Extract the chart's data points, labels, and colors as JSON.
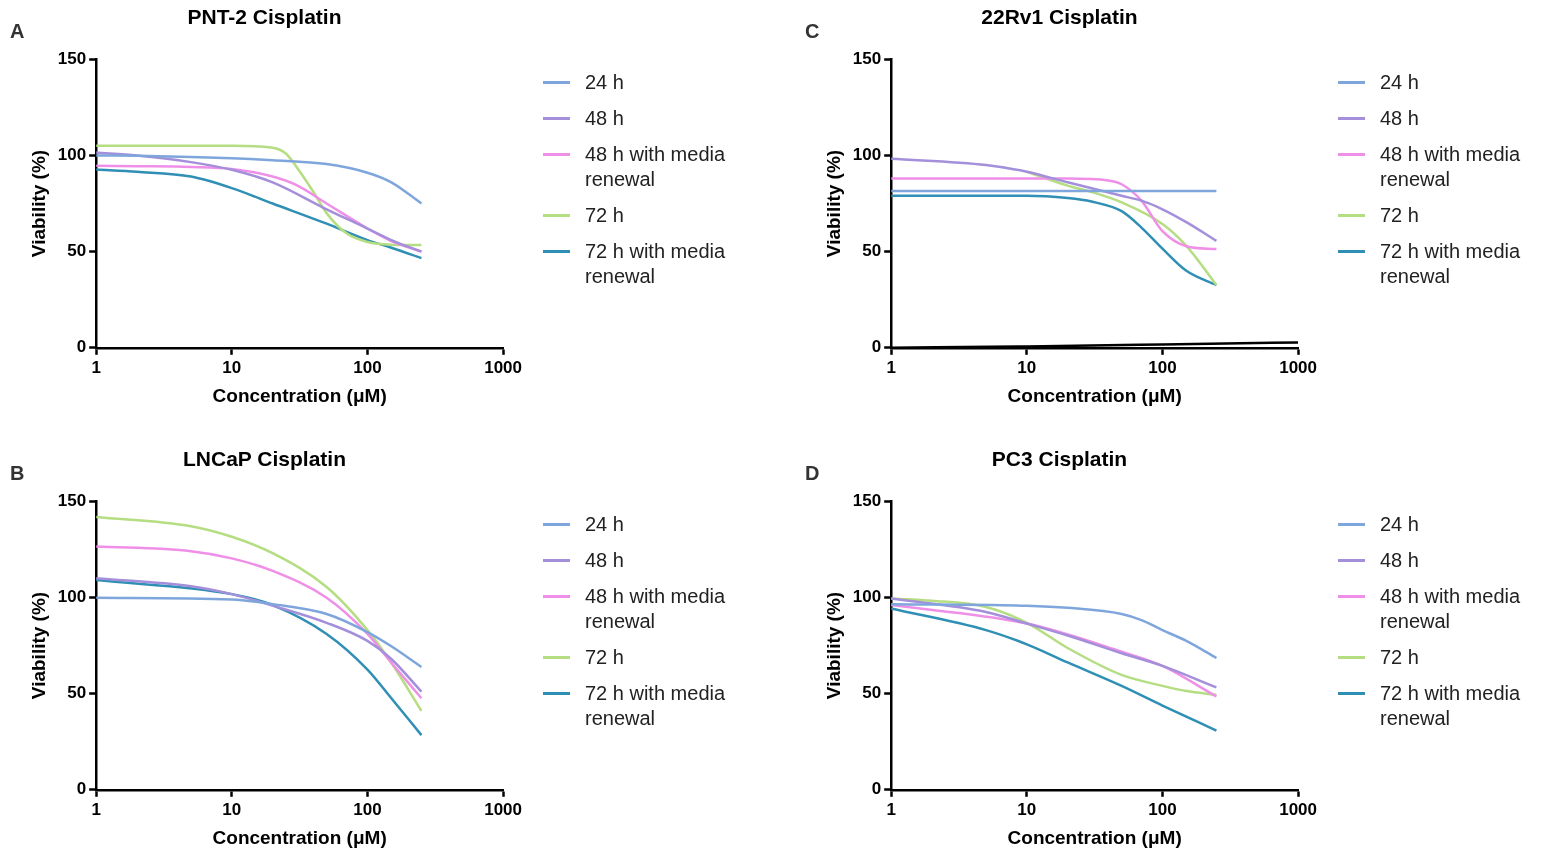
{
  "chart_data": [
    {
      "type": "line",
      "title": "PNT-2 Cisplatin",
      "xlabel": "Concentration (μM)",
      "ylabel": "Viability (%)",
      "annotations": [
        "A"
      ],
      "log": "x",
      "xlim": [
        1,
        1000
      ],
      "xticks": [
        1,
        10,
        100,
        1000
      ],
      "ylim": [
        0,
        150
      ],
      "yticks": [
        0,
        50,
        100,
        150
      ],
      "grid": false,
      "legend": "right",
      "marker": "none",
      "line_style": "solid",
      "series": [
        {
          "name": "24 h",
          "color": "#7fa6dc",
          "x": [
            1,
            2,
            5,
            10,
            20,
            50,
            100,
            150,
            250
          ],
          "values": [
            100,
            99.8,
            99.2,
            98.5,
            97.5,
            95.5,
            91,
            86,
            75
          ]
        },
        {
          "name": "48 h",
          "color": "#a48fdb",
          "x": [
            1,
            2,
            5,
            10,
            20,
            50,
            100,
            150,
            250
          ],
          "values": [
            101.5,
            100,
            96.5,
            92.5,
            86,
            72,
            62,
            56,
            50
          ]
        },
        {
          "name": "48 h with media renewal",
          "color": "#ef8fe8",
          "x": [
            1,
            2,
            5,
            10,
            20,
            30,
            50,
            100,
            150,
            250
          ],
          "values": [
            94.6,
            94.4,
            94,
            93,
            89,
            84.5,
            75,
            62,
            55.5,
            50
          ]
        },
        {
          "name": "72 h",
          "color": "#b5dd82",
          "x": [
            1,
            5,
            10,
            20,
            25,
            30,
            40,
            50,
            70,
            100,
            150,
            250
          ],
          "values": [
            105,
            105,
            105,
            104,
            101,
            94,
            81,
            70,
            59.5,
            55,
            53.6,
            53.4
          ]
        },
        {
          "name": "72 h with media renewal",
          "color": "#2f8fb4",
          "x": [
            1,
            2,
            5,
            10,
            20,
            50,
            100,
            150,
            250
          ],
          "values": [
            92.7,
            91.5,
            89,
            83,
            75,
            64.5,
            56,
            52,
            46.6
          ]
        }
      ]
    },
    {
      "type": "line",
      "title": "22Rv1 Cisplatin",
      "xlabel": "Concentration (μM)",
      "ylabel": "Viability (%)",
      "annotations": [
        "C"
      ],
      "log": "x",
      "xlim": [
        1,
        1000
      ],
      "xticks": [
        1,
        10,
        100,
        1000
      ],
      "ylim": [
        0,
        150
      ],
      "yticks": [
        0,
        50,
        100,
        150
      ],
      "grid": false,
      "legend": "right",
      "marker": "none",
      "line_style": "solid",
      "series": [
        {
          "name": "24 h",
          "color": "#7fa6dc",
          "x": [
            1,
            250
          ],
          "values": [
            81.5,
            81.5
          ]
        },
        {
          "name": "48 h",
          "color": "#a48fdb",
          "x": [
            1,
            5,
            10,
            20,
            50,
            70,
            100,
            150,
            250
          ],
          "values": [
            98.3,
            95,
            91.5,
            86,
            79,
            76.5,
            72,
            65.3,
            55.6
          ]
        },
        {
          "name": "48 h with media renewal",
          "color": "#ef8fe8",
          "x": [
            1,
            10,
            20,
            40,
            50,
            70,
            100,
            150,
            250
          ],
          "values": [
            88,
            88,
            88,
            87,
            85,
            76.5,
            60.6,
            52.8,
            51.3
          ]
        },
        {
          "name": "72 h",
          "color": "#b5dd82",
          "x": [
            10,
            20,
            30,
            50,
            100,
            150,
            250
          ],
          "values": [
            91.5,
            84.3,
            81,
            75.6,
            64.4,
            53,
            32.6
          ]
        },
        {
          "name": "72 h with media renewal",
          "color": "#2f8fb4",
          "x": [
            1,
            10,
            20,
            30,
            50,
            70,
            100,
            150,
            250
          ],
          "values": [
            79,
            79,
            77.8,
            76,
            71,
            62.5,
            51.5,
            40,
            32.6
          ]
        },
        {
          "color": "#000000",
          "x": [
            1,
            10,
            100,
            1000
          ],
          "values": [
            0,
            0.7,
            1.7,
            2.8
          ]
        }
      ]
    },
    {
      "type": "line",
      "title": "LNCaP Cisplatin",
      "xlabel": "Concentration (μM)",
      "ylabel": "Viability (%)",
      "annotations": [
        "B"
      ],
      "log": "x",
      "xlim": [
        1,
        1000
      ],
      "xticks": [
        1,
        10,
        100,
        1000
      ],
      "ylim": [
        0,
        150
      ],
      "yticks": [
        0,
        50,
        100,
        150
      ],
      "grid": false,
      "legend": "right",
      "marker": "none",
      "line_style": "solid",
      "series": [
        {
          "name": "24 h",
          "color": "#7fa6dc",
          "x": [
            1,
            10,
            20,
            50,
            100,
            150,
            250
          ],
          "values": [
            99.8,
            98.9,
            96.5,
            91.4,
            82,
            74.6,
            63.8
          ]
        },
        {
          "name": "48 h",
          "color": "#a48fdb",
          "x": [
            1,
            5,
            10,
            20,
            50,
            100,
            150,
            250
          ],
          "values": [
            110,
            105.8,
            101.7,
            95.7,
            86.8,
            77.4,
            68,
            51
          ]
        },
        {
          "name": "48 h with media renewal",
          "color": "#ef8fe8",
          "x": [
            1,
            5,
            10,
            20,
            50,
            100,
            150,
            250
          ],
          "values": [
            126.5,
            124,
            120.3,
            113.8,
            99.8,
            81,
            66,
            47.6
          ]
        },
        {
          "name": "72 h",
          "color": "#b5dd82",
          "x": [
            1,
            5,
            10,
            20,
            50,
            100,
            150,
            250
          ],
          "values": [
            141.8,
            137,
            131.5,
            123,
            105.4,
            83,
            66,
            41
          ]
        },
        {
          "name": "72 h with media renewal",
          "color": "#2f8fb4",
          "x": [
            1,
            10,
            20,
            50,
            100,
            150,
            250
          ],
          "values": [
            109,
            101.7,
            96,
            81,
            62.5,
            47.6,
            28.4
          ]
        }
      ]
    },
    {
      "type": "line",
      "title": "PC3 Cisplatin",
      "xlabel": "Concentration (μM)",
      "ylabel": "Viability (%)",
      "annotations": [
        "D"
      ],
      "log": "x",
      "xlim": [
        1,
        1000
      ],
      "xticks": [
        1,
        10,
        100,
        1000
      ],
      "ylim": [
        0,
        150
      ],
      "yticks": [
        0,
        50,
        100,
        150
      ],
      "grid": false,
      "legend": "right",
      "marker": "none",
      "line_style": "solid",
      "series": [
        {
          "name": "24 h",
          "color": "#7fa6dc",
          "x": [
            1,
            10,
            20,
            50,
            70,
            100,
            150,
            250
          ],
          "values": [
            96.5,
            95.7,
            94.6,
            91.4,
            88.2,
            83,
            77.4,
            68.5
          ]
        },
        {
          "name": "48 h",
          "color": "#a48fdb",
          "x": [
            1,
            5,
            10,
            20,
            50,
            100,
            250
          ],
          "values": [
            99.4,
            92.4,
            86.4,
            80.2,
            71,
            64.4,
            53.2
          ]
        },
        {
          "name": "48 h with media renewal",
          "color": "#ef8fe8",
          "x": [
            1,
            10,
            50,
            100,
            250
          ],
          "values": [
            96,
            86.4,
            71.8,
            64.4,
            48.5
          ]
        },
        {
          "name": "72 h",
          "color": "#b5dd82",
          "x": [
            1,
            2,
            5,
            10,
            20,
            50,
            100,
            150,
            250
          ],
          "values": [
            99.4,
            98.3,
            95,
            86.8,
            73.7,
            59.7,
            54,
            51.3,
            49.4
          ]
        },
        {
          "name": "72 h with media renewal",
          "color": "#2f8fb4",
          "x": [
            1,
            5,
            10,
            20,
            50,
            100,
            250
          ],
          "values": [
            94.2,
            83,
            75.6,
            66.2,
            54,
            43.8,
            30.8
          ]
        }
      ]
    }
  ]
}
